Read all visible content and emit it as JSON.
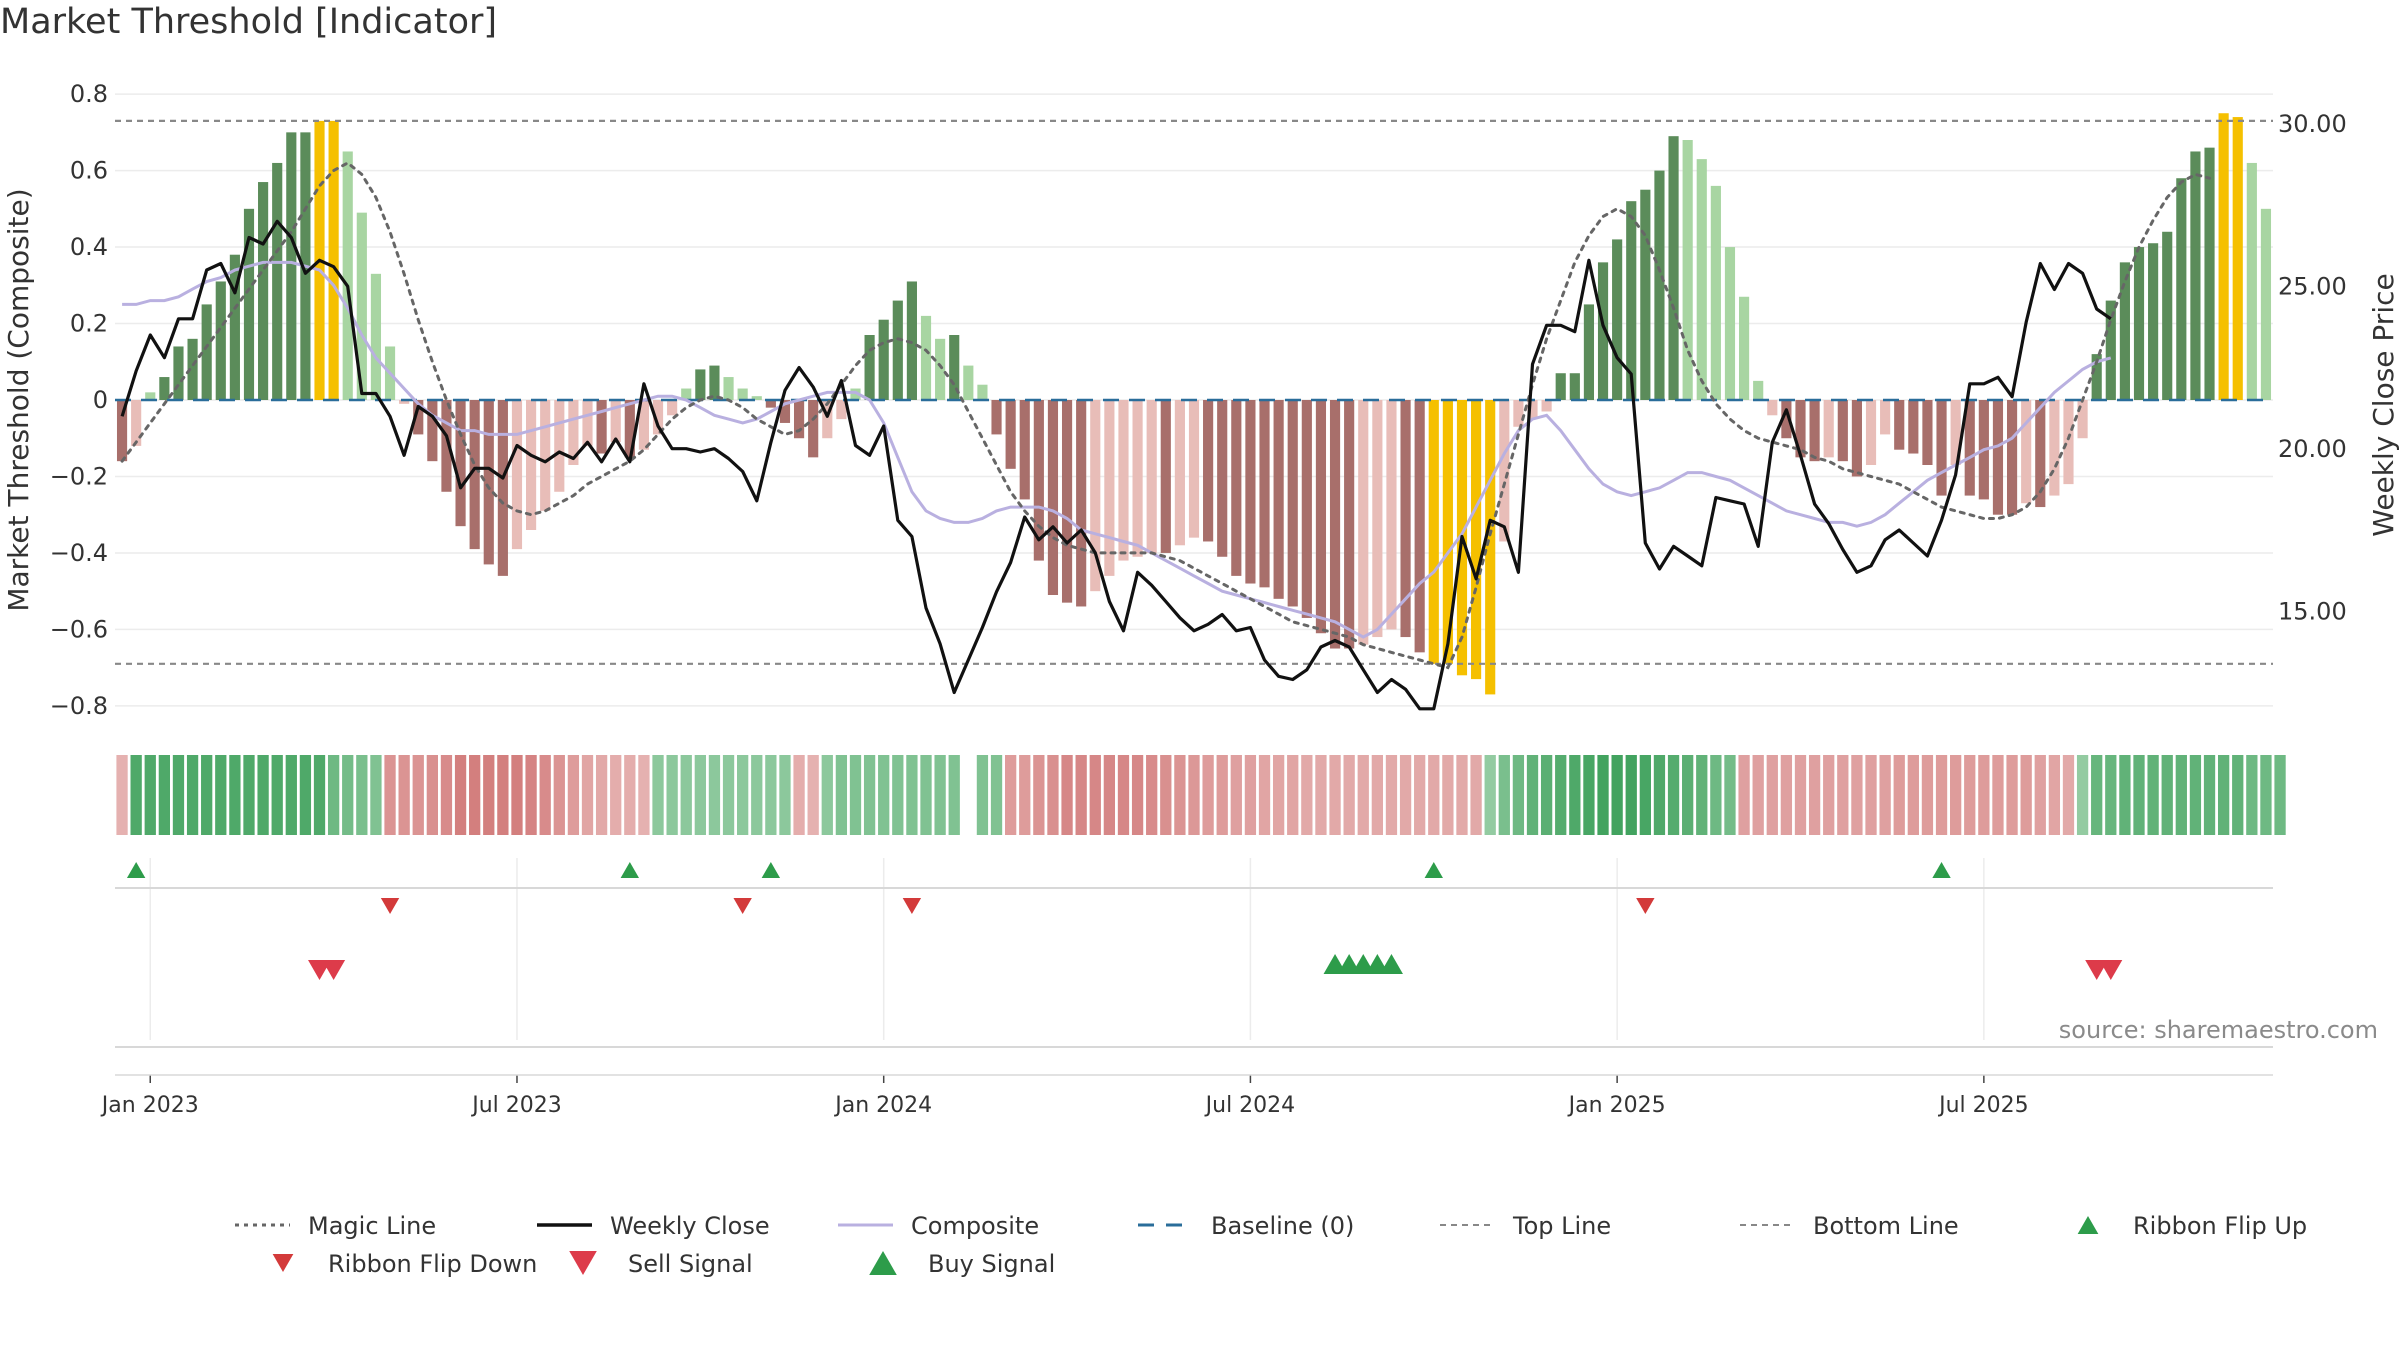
{
  "title": "Market Threshold [Indicator]",
  "source": "source: sharemaestro.com",
  "colors": {
    "bull_strong": "#5b8c5a",
    "bull_weak": "#a8d5a2",
    "bear_strong": "#a86f6b",
    "bear_weak": "#e8bdb8",
    "extreme": "#f5c000",
    "magic": "#666666",
    "close": "#111111",
    "composite": "#b9b0e0",
    "baseline": "#2a6d9a",
    "threshold": "#888888",
    "signal_up": "#2d9c4a",
    "signal_down": "#d33a3a"
  },
  "chart_data": {
    "type": "bar",
    "ylabel_left": "Market Threshold (Composite)",
    "ylabel_right": "Weekly Close Price",
    "ylim_left": [
      -0.85,
      0.85
    ],
    "ylim_right": [
      11.5,
      31.5
    ],
    "yticks_left": [
      "0.8",
      "0.6",
      "0.4",
      "0.2",
      "0",
      "−0.2",
      "−0.4",
      "−0.6",
      "−0.8"
    ],
    "yticks_left_values": [
      0.8,
      0.6,
      0.4,
      0.2,
      0,
      -0.2,
      -0.4,
      -0.6,
      -0.8
    ],
    "yticks_right": [
      "30.00",
      "25.00",
      "20.00",
      "15.00"
    ],
    "yticks_right_values": [
      30,
      25,
      20,
      15
    ],
    "date_ticks": [
      "Jan 2023",
      "Jul 2023",
      "Jan 2024",
      "Jul 2024",
      "Jan 2025",
      "Jul 2025"
    ],
    "date_ticks_week": [
      2.5,
      28.5,
      54.5,
      80.5,
      106.5,
      132.5
    ],
    "top_line": 0.73,
    "bottom_line": -0.69,
    "baseline": 0,
    "composite_bars": [
      -0.16,
      -0.12,
      0.02,
      0.06,
      0.14,
      0.16,
      0.25,
      0.31,
      0.38,
      0.5,
      0.57,
      0.62,
      0.7,
      0.7,
      0.73,
      0.73,
      0.65,
      0.49,
      0.33,
      0.14,
      -0.01,
      -0.09,
      -0.16,
      -0.24,
      -0.33,
      -0.39,
      -0.43,
      -0.46,
      -0.39,
      -0.34,
      -0.29,
      -0.24,
      -0.17,
      -0.12,
      -0.14,
      -0.11,
      -0.15,
      -0.13,
      -0.09,
      -0.04,
      0.03,
      0.08,
      0.09,
      0.06,
      0.03,
      0.01,
      -0.02,
      -0.06,
      -0.1,
      -0.15,
      -0.1,
      -0.05,
      0.03,
      0.17,
      0.21,
      0.26,
      0.31,
      0.22,
      0.16,
      0.17,
      0.09,
      0.04,
      -0.09,
      -0.18,
      -0.26,
      -0.42,
      -0.51,
      -0.53,
      -0.54,
      -0.5,
      -0.46,
      -0.42,
      -0.41,
      -0.4,
      -0.4,
      -0.38,
      -0.36,
      -0.37,
      -0.41,
      -0.46,
      -0.48,
      -0.49,
      -0.52,
      -0.54,
      -0.57,
      -0.61,
      -0.65,
      -0.65,
      -0.64,
      -0.62,
      -0.6,
      -0.62,
      -0.66,
      -0.69,
      -0.69,
      -0.72,
      -0.73,
      -0.77,
      -0.37,
      -0.07,
      -0.05,
      -0.03,
      0.07,
      0.07,
      0.25,
      0.36,
      0.42,
      0.52,
      0.55,
      0.6,
      0.69,
      0.68,
      0.63,
      0.56,
      0.4,
      0.27,
      0.05,
      -0.04,
      -0.1,
      -0.15,
      -0.16,
      -0.15,
      -0.16,
      -0.2,
      -0.17,
      -0.09,
      -0.13,
      -0.14,
      -0.17,
      -0.25,
      -0.17,
      -0.25,
      -0.26,
      -0.3,
      -0.3,
      -0.27,
      -0.28,
      -0.25,
      -0.22,
      -0.1,
      0.12,
      0.26,
      0.36,
      0.4,
      0.41,
      0.44,
      0.58,
      0.65,
      0.66,
      0.75,
      0.74,
      0.62,
      0.5
    ],
    "weekly_close": [
      21.0,
      22.4,
      23.5,
      22.8,
      24.0,
      24.0,
      25.5,
      25.7,
      24.8,
      26.5,
      26.3,
      27.0,
      26.5,
      25.4,
      25.8,
      25.6,
      25.0,
      21.7,
      21.7,
      21.0,
      19.8,
      21.3,
      21.0,
      20.4,
      18.8,
      19.4,
      19.4,
      19.1,
      20.1,
      19.8,
      19.6,
      19.9,
      19.7,
      20.2,
      19.6,
      20.3,
      19.6,
      22.0,
      20.7,
      20.0,
      20.0,
      19.9,
      20.0,
      19.7,
      19.3,
      18.4,
      20.2,
      21.8,
      22.5,
      21.9,
      21.0,
      22.1,
      20.1,
      19.8,
      20.7,
      17.8,
      17.3,
      15.1,
      14.0,
      12.5,
      13.5,
      14.5,
      15.6,
      16.5,
      17.9,
      17.2,
      17.6,
      17.1,
      17.5,
      16.8,
      15.3,
      14.4,
      16.2,
      15.8,
      15.3,
      14.8,
      14.4,
      14.6,
      14.9,
      14.4,
      14.5,
      13.5,
      13.0,
      12.9,
      13.2,
      13.9,
      14.1,
      13.9,
      13.2,
      12.5,
      12.9,
      12.6,
      12.0,
      12.0,
      14.0,
      17.3,
      16.0,
      17.8,
      17.6,
      16.2,
      22.6,
      23.8,
      23.8,
      23.6,
      25.8,
      23.8,
      22.8,
      22.3,
      17.1,
      16.3,
      17.0,
      16.7,
      16.4,
      18.5,
      18.4,
      18.3,
      17.0,
      20.2,
      21.2,
      19.8,
      18.3,
      17.7,
      16.9,
      16.2,
      16.4,
      17.2,
      17.5,
      17.1,
      16.7,
      17.8,
      19.2,
      22.0,
      22.0,
      22.2,
      21.6,
      23.9,
      25.7,
      24.9,
      25.7,
      25.4,
      24.3,
      24.0
    ],
    "magic_line": [
      -0.16,
      -0.11,
      -0.06,
      -0.01,
      0.04,
      0.09,
      0.14,
      0.19,
      0.24,
      0.29,
      0.34,
      0.39,
      0.44,
      0.5,
      0.56,
      0.6,
      0.62,
      0.59,
      0.53,
      0.44,
      0.33,
      0.21,
      0.1,
      0.0,
      -0.09,
      -0.17,
      -0.23,
      -0.27,
      -0.29,
      -0.3,
      -0.29,
      -0.27,
      -0.25,
      -0.22,
      -0.2,
      -0.18,
      -0.16,
      -0.13,
      -0.09,
      -0.05,
      -0.02,
      0.0,
      0.01,
      0.0,
      -0.02,
      -0.05,
      -0.07,
      -0.09,
      -0.08,
      -0.05,
      -0.01,
      0.04,
      0.09,
      0.13,
      0.15,
      0.16,
      0.15,
      0.13,
      0.09,
      0.04,
      -0.03,
      -0.1,
      -0.17,
      -0.24,
      -0.29,
      -0.33,
      -0.36,
      -0.38,
      -0.39,
      -0.4,
      -0.4,
      -0.4,
      -0.4,
      -0.4,
      -0.41,
      -0.42,
      -0.44,
      -0.46,
      -0.48,
      -0.5,
      -0.52,
      -0.54,
      -0.56,
      -0.58,
      -0.59,
      -0.6,
      -0.61,
      -0.62,
      -0.64,
      -0.65,
      -0.66,
      -0.67,
      -0.68,
      -0.69,
      -0.7,
      -0.62,
      -0.49,
      -0.35,
      -0.22,
      -0.09,
      0.04,
      0.16,
      0.26,
      0.36,
      0.43,
      0.48,
      0.5,
      0.48,
      0.43,
      0.34,
      0.24,
      0.13,
      0.05,
      -0.01,
      -0.05,
      -0.08,
      -0.1,
      -0.11,
      -0.12,
      -0.13,
      -0.15,
      -0.16,
      -0.18,
      -0.19,
      -0.2,
      -0.21,
      -0.22,
      -0.24,
      -0.26,
      -0.28,
      -0.29,
      -0.3,
      -0.31,
      -0.31,
      -0.3,
      -0.28,
      -0.24,
      -0.18,
      -0.1,
      0.0,
      0.1,
      0.21,
      0.31,
      0.4,
      0.47,
      0.53,
      0.57,
      0.59,
      0.58
    ],
    "composite_line": [
      0.25,
      0.25,
      0.26,
      0.26,
      0.27,
      0.29,
      0.31,
      0.32,
      0.34,
      0.35,
      0.36,
      0.36,
      0.36,
      0.35,
      0.34,
      0.3,
      0.24,
      0.17,
      0.11,
      0.07,
      0.03,
      -0.01,
      -0.04,
      -0.06,
      -0.08,
      -0.08,
      -0.09,
      -0.09,
      -0.09,
      -0.08,
      -0.07,
      -0.06,
      -0.05,
      -0.04,
      -0.03,
      -0.02,
      -0.01,
      0.0,
      0.01,
      0.01,
      0.0,
      -0.02,
      -0.04,
      -0.05,
      -0.06,
      -0.05,
      -0.03,
      -0.01,
      0.0,
      0.01,
      0.02,
      0.02,
      0.02,
      0.0,
      -0.06,
      -0.15,
      -0.24,
      -0.29,
      -0.31,
      -0.32,
      -0.32,
      -0.31,
      -0.29,
      -0.28,
      -0.28,
      -0.28,
      -0.29,
      -0.31,
      -0.34,
      -0.35,
      -0.36,
      -0.37,
      -0.38,
      -0.4,
      -0.42,
      -0.44,
      -0.46,
      -0.48,
      -0.5,
      -0.51,
      -0.52,
      -0.53,
      -0.54,
      -0.55,
      -0.56,
      -0.57,
      -0.58,
      -0.6,
      -0.62,
      -0.6,
      -0.56,
      -0.52,
      -0.48,
      -0.45,
      -0.4,
      -0.35,
      -0.28,
      -0.21,
      -0.14,
      -0.08,
      -0.05,
      -0.04,
      -0.08,
      -0.13,
      -0.18,
      -0.22,
      -0.24,
      -0.25,
      -0.24,
      -0.23,
      -0.21,
      -0.19,
      -0.19,
      -0.2,
      -0.21,
      -0.23,
      -0.25,
      -0.27,
      -0.29,
      -0.3,
      -0.31,
      -0.32,
      -0.32,
      -0.33,
      -0.32,
      -0.3,
      -0.27,
      -0.24,
      -0.21,
      -0.19,
      -0.17,
      -0.15,
      -0.13,
      -0.12,
      -0.1,
      -0.06,
      -0.02,
      0.02,
      0.05,
      0.08,
      0.1,
      0.11
    ],
    "ribbon": [
      -0.2,
      0.85,
      0.85,
      0.85,
      0.85,
      0.85,
      0.85,
      0.85,
      0.85,
      0.85,
      0.85,
      0.85,
      0.85,
      0.85,
      0.85,
      0.6,
      0.55,
      0.5,
      0.45,
      -0.55,
      -0.55,
      -0.55,
      -0.6,
      -0.65,
      -0.8,
      -0.8,
      -0.8,
      -0.8,
      -0.8,
      -0.75,
      -0.65,
      -0.55,
      -0.45,
      -0.35,
      -0.3,
      -0.25,
      -0.25,
      -0.2,
      0.35,
      0.35,
      0.35,
      0.35,
      0.35,
      0.35,
      0.35,
      0.35,
      0.35,
      0.35,
      -0.25,
      -0.2,
      0.35,
      0.45,
      0.45,
      0.45,
      0.45,
      0.45,
      0.45,
      0.45,
      0.45,
      0.45,
      0.45,
      0.45,
      0.45,
      -0.45,
      -0.45,
      -0.55,
      -0.6,
      -0.7,
      -0.7,
      -0.7,
      -0.7,
      -0.7,
      -0.7,
      -0.65,
      -0.6,
      -0.55,
      -0.5,
      -0.45,
      -0.45,
      -0.4,
      -0.4,
      -0.35,
      -0.35,
      -0.35,
      -0.3,
      -0.3,
      -0.3,
      -0.3,
      -0.3,
      -0.3,
      -0.3,
      -0.3,
      -0.3,
      -0.3,
      -0.3,
      -0.3,
      -0.3,
      0.3,
      0.5,
      0.6,
      0.7,
      0.75,
      0.8,
      0.85,
      0.9,
      0.95,
      0.95,
      0.95,
      0.9,
      0.85,
      0.8,
      0.75,
      0.7,
      0.6,
      0.55,
      -0.4,
      -0.4,
      -0.4,
      -0.4,
      -0.4,
      -0.4,
      -0.4,
      -0.4,
      -0.4,
      -0.4,
      -0.4,
      -0.45,
      -0.45,
      -0.45,
      -0.45,
      -0.45,
      -0.45,
      -0.45,
      -0.45,
      -0.45,
      -0.45,
      -0.4,
      -0.35,
      -0.3,
      0.3,
      0.65,
      0.65,
      0.7,
      0.7,
      0.7,
      0.7,
      0.7,
      0.7,
      0.7,
      0.7,
      0.7,
      0.6,
      0.6,
      0.6
    ],
    "ribbon_gap_weeks": [
      60
    ],
    "ribbon_flip_up_weeks": [
      1,
      36,
      46,
      93,
      129
    ],
    "ribbon_flip_down_weeks": [
      19,
      44,
      56,
      108
    ],
    "sell_signal_weeks": [
      14,
      15,
      140,
      141
    ],
    "buy_signal_weeks": [
      86,
      87,
      88,
      89,
      90
    ]
  },
  "legend": [
    {
      "key": "magic",
      "label": "Magic Line"
    },
    {
      "key": "close",
      "label": "Weekly Close"
    },
    {
      "key": "composite",
      "label": "Composite"
    },
    {
      "key": "baseline",
      "label": "Baseline (0)"
    },
    {
      "key": "top",
      "label": "Top Line"
    },
    {
      "key": "bottom",
      "label": "Bottom Line"
    },
    {
      "key": "flip_up",
      "label": "Ribbon Flip Up"
    },
    {
      "key": "flip_down",
      "label": "Ribbon Flip Down"
    },
    {
      "key": "sell",
      "label": "Sell Signal"
    },
    {
      "key": "buy",
      "label": "Buy Signal"
    }
  ]
}
